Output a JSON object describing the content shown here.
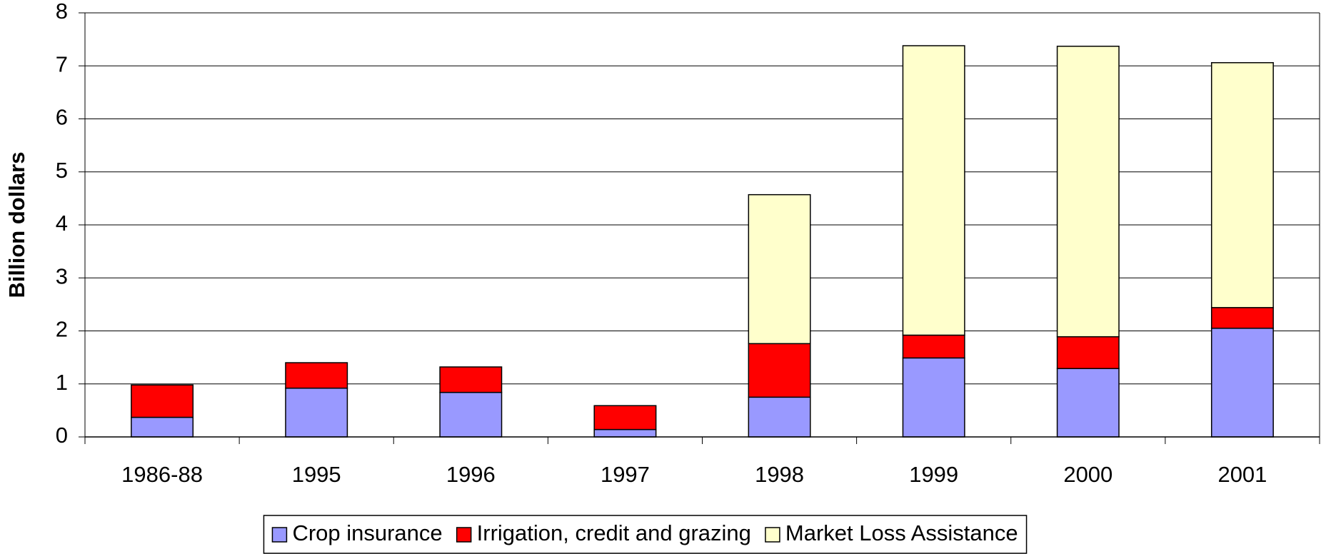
{
  "chart_data": {
    "type": "stacked_bar",
    "y_label": "Billion dollars",
    "categories": [
      "1986-88",
      "1995",
      "1996",
      "1997",
      "1998",
      "1999",
      "2000",
      "2001"
    ],
    "series": [
      {
        "name": "Crop insurance",
        "color": "#9999ff",
        "values": [
          0.37,
          0.92,
          0.84,
          0.14,
          0.75,
          1.49,
          1.29,
          2.05
        ]
      },
      {
        "name": "Irrigation, credit and grazing",
        "color": "#ff0000",
        "values": [
          0.61,
          0.48,
          0.48,
          0.45,
          1.01,
          0.43,
          0.6,
          0.39
        ]
      },
      {
        "name": "Market Loss Assistance",
        "color": "#ffffcc",
        "values": [
          0,
          0,
          0,
          0,
          2.81,
          5.46,
          5.48,
          4.62
        ]
      }
    ],
    "ylim": [
      0,
      8
    ],
    "yticks": [
      0,
      1,
      2,
      3,
      4,
      5,
      6,
      7,
      8
    ],
    "grid": true,
    "legend": "bottom"
  }
}
